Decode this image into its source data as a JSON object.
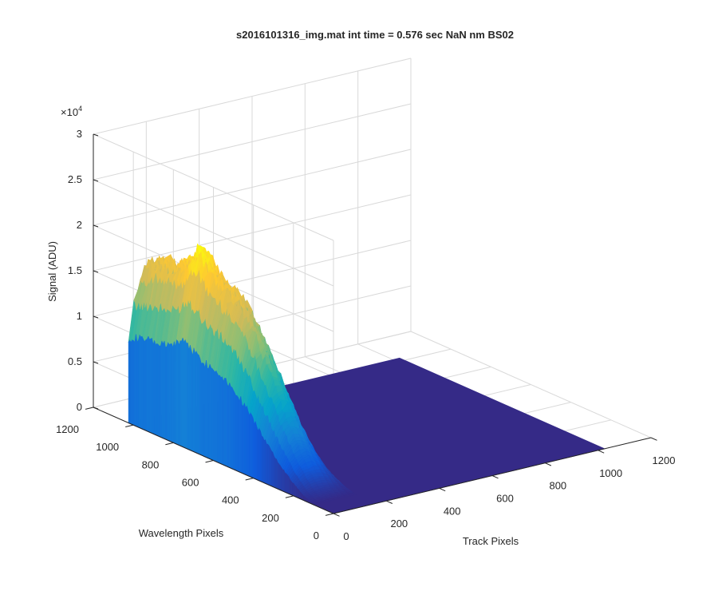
{
  "chart_data": {
    "type": "surface",
    "title": "s2016101316_img.mat int time = 0.576 sec  NaN nm BS02",
    "xlabel": "Track Pixels",
    "ylabel": "Wavelength Pixels",
    "zlabel": "Signal (ADU)",
    "xlim": [
      0,
      1200
    ],
    "ylim": [
      0,
      1200
    ],
    "zlim": [
      0,
      30000
    ],
    "x_ticks": [
      "0",
      "200",
      "400",
      "600",
      "800",
      "1000",
      "1200"
    ],
    "y_ticks": [
      "0",
      "200",
      "400",
      "600",
      "800",
      "1000",
      "1200"
    ],
    "z_ticks": [
      "0",
      "0.5",
      "1",
      "1.5",
      "2",
      "2.5",
      "3"
    ],
    "z_exponent_label": "×10",
    "z_exponent_power": "4",
    "grid": true,
    "colormap": "parula",
    "surface_extent": {
      "track_pixels": [
        0,
        1024
      ],
      "wavelength_pixels": [
        0,
        1024
      ]
    },
    "signal_region": {
      "track_pixels": [
        0,
        160
      ],
      "wavelength_pixels": [
        100,
        1024
      ]
    },
    "peak_signal": 21500,
    "background_signal": 0,
    "profile": {
      "wavelength_pixels": [
        1024,
        950,
        900,
        850,
        800,
        750,
        700,
        650,
        600,
        550,
        500,
        450,
        400,
        350,
        300,
        250,
        200,
        150,
        100
      ],
      "signal": [
        17000,
        18000,
        18300,
        18500,
        19500,
        21500,
        20000,
        18800,
        18200,
        17500,
        16000,
        14000,
        11500,
        9000,
        6500,
        4300,
        2400,
        900,
        0
      ]
    }
  },
  "colors": {
    "parula": [
      "#352a87",
      "#0f5cdd",
      "#1481d6",
      "#06a4ca",
      "#2eb7a4",
      "#87bf77",
      "#d1bb59",
      "#fec832",
      "#f9fb0e"
    ],
    "floor": "#352a87",
    "grid": "#d9d9d9",
    "axis": "#262626"
  }
}
